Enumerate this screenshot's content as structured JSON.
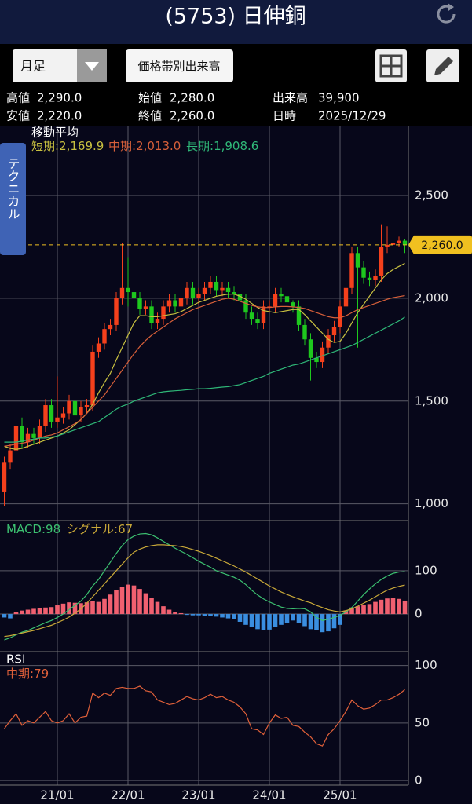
{
  "header": {
    "title": "(5753) 日伸銅"
  },
  "toolbar": {
    "period": "月足",
    "button": "価格帯別出来高"
  },
  "info": {
    "rows": [
      [
        {
          "label": "高値",
          "value": "2,290.0"
        },
        {
          "label": "始値",
          "value": "2,280.0"
        },
        {
          "label": "出来高",
          "value": "39,900"
        }
      ],
      [
        {
          "label": "安値",
          "value": "2,220.0"
        },
        {
          "label": "終値",
          "value": "2,260.0"
        },
        {
          "label": "日時",
          "value": "2025/12/29"
        }
      ]
    ]
  },
  "side_tab": "テクニカル",
  "chart_data": [
    {
      "type": "candlestick",
      "title": "移動平均",
      "legend_separator": ":",
      "grid": true,
      "up_color": "#f5401c",
      "down_color": "#1ec81e",
      "categories": [
        null,
        null,
        null,
        null,
        null,
        null,
        null,
        null,
        null,
        "21/01",
        null,
        null,
        null,
        null,
        null,
        null,
        null,
        null,
        null,
        null,
        null,
        "22/01",
        null,
        null,
        null,
        null,
        null,
        null,
        null,
        null,
        null,
        null,
        null,
        "23/01",
        null,
        null,
        null,
        null,
        null,
        null,
        null,
        null,
        null,
        null,
        null,
        "24/01",
        null,
        null,
        null,
        null,
        null,
        null,
        null,
        null,
        null,
        null,
        null,
        "25/01",
        null,
        null,
        null,
        null,
        null,
        null,
        null,
        null,
        null,
        null,
        null
      ],
      "open": [
        1060,
        1200,
        1260,
        1380,
        1300,
        1340,
        1320,
        1380,
        1480,
        1400,
        1420,
        1440,
        1500,
        1430,
        1470,
        1480,
        1740,
        1780,
        1850,
        1870,
        2000,
        2050,
        2030,
        2000,
        1950,
        1960,
        1880,
        1900,
        1960,
        1990,
        1960,
        2000,
        2050,
        2000,
        2020,
        2050,
        2080,
        2040,
        2050,
        2030,
        2020,
        1990,
        1930,
        1900,
        1880,
        1960,
        1960,
        2020,
        2010,
        1980,
        1960,
        1870,
        1800,
        1710,
        1690,
        1760,
        1820,
        1860,
        1960,
        2050,
        2220,
        2150,
        2100,
        2090,
        2110,
        2250,
        2260,
        2270,
        2280
      ],
      "high": [
        1230,
        1290,
        1410,
        1420,
        1370,
        1370,
        1410,
        1510,
        1510,
        1620,
        1470,
        1530,
        1530,
        1500,
        1510,
        1770,
        1810,
        1880,
        1900,
        2030,
        2270,
        2200,
        2060,
        2030,
        1990,
        1990,
        1930,
        1990,
        2020,
        2020,
        2060,
        2080,
        2080,
        2050,
        2080,
        2110,
        2110,
        2080,
        2080,
        2060,
        2050,
        2020,
        1960,
        1930,
        1990,
        1990,
        2050,
        2050,
        2040,
        1990,
        1990,
        1900,
        1830,
        1740,
        1790,
        1850,
        1890,
        1990,
        2080,
        2250,
        2250,
        2180,
        2130,
        2140,
        2360,
        2350,
        2330,
        2300,
        2290
      ],
      "low": [
        990,
        1170,
        1230,
        1270,
        1270,
        1290,
        1290,
        1350,
        1370,
        1370,
        1390,
        1410,
        1400,
        1400,
        1440,
        1450,
        1710,
        1750,
        1820,
        1840,
        1970,
        1960,
        1970,
        1920,
        1920,
        1850,
        1850,
        1870,
        1930,
        1930,
        1930,
        1970,
        1970,
        1970,
        1990,
        2020,
        2010,
        2010,
        2000,
        1990,
        1960,
        1900,
        1870,
        1850,
        1850,
        1930,
        1930,
        1980,
        1950,
        1930,
        1840,
        1770,
        1600,
        1660,
        1660,
        1730,
        1790,
        1830,
        1930,
        2020,
        1760,
        2070,
        2060,
        2060,
        2080,
        2220,
        2240,
        2250,
        2220
      ],
      "close": [
        1200,
        1260,
        1380,
        1300,
        1340,
        1320,
        1380,
        1480,
        1400,
        1420,
        1440,
        1500,
        1430,
        1470,
        1480,
        1740,
        1780,
        1850,
        1870,
        2000,
        2050,
        2030,
        2000,
        1950,
        1960,
        1880,
        1900,
        1960,
        1990,
        1960,
        2000,
        2050,
        2000,
        2020,
        2050,
        2080,
        2040,
        2050,
        2030,
        2020,
        1990,
        1930,
        1900,
        1880,
        1960,
        1960,
        2020,
        2010,
        1980,
        1960,
        1870,
        1800,
        1710,
        1690,
        1760,
        1820,
        1860,
        1960,
        2050,
        2220,
        2150,
        2100,
        2090,
        2110,
        2250,
        2260,
        2270,
        2280,
        2260
      ],
      "series": [
        {
          "name": "短期",
          "color": "#c8c040",
          "last_label": "2,169.9",
          "values": [
            1280,
            1270,
            1265,
            1270,
            1280,
            1290,
            1300,
            1310,
            1320,
            1330,
            1345,
            1360,
            1385,
            1410,
            1440,
            1485,
            1540,
            1590,
            1635,
            1700,
            1760,
            1820,
            1880,
            1915,
            1915,
            1910,
            1910,
            1915,
            1920,
            1925,
            1935,
            1950,
            1965,
            1980,
            1990,
            2000,
            2010,
            2015,
            2020,
            2020,
            2010,
            1995,
            1975,
            1955,
            1940,
            1935,
            1930,
            1935,
            1940,
            1945,
            1945,
            1920,
            1890,
            1860,
            1830,
            1800,
            1785,
            1790,
            1830,
            1880,
            1930,
            1970,
            2010,
            2050,
            2090,
            2120,
            2140,
            2155,
            2169.9
          ]
        },
        {
          "name": "中期",
          "color": "#d8603a",
          "last_label": "2,013.0",
          "values": [
            1280,
            1285,
            1290,
            1295,
            1300,
            1310,
            1320,
            1330,
            1335,
            1345,
            1360,
            1375,
            1390,
            1410,
            1440,
            1470,
            1500,
            1530,
            1570,
            1610,
            1650,
            1690,
            1730,
            1765,
            1795,
            1820,
            1840,
            1860,
            1880,
            1900,
            1915,
            1930,
            1945,
            1955,
            1965,
            1975,
            1985,
            1995,
            2000,
            1995,
            1985,
            1975,
            1965,
            1958,
            1955,
            1955,
            1958,
            1960,
            1960,
            1958,
            1955,
            1950,
            1940,
            1930,
            1920,
            1910,
            1905,
            1905,
            1915,
            1930,
            1945,
            1955,
            1965,
            1975,
            1985,
            1995,
            2003,
            2008,
            2013.0
          ]
        },
        {
          "name": "長期",
          "color": "#2fb878",
          "last_label": "1,908.6",
          "values": [
            1300,
            1300,
            1300,
            1305,
            1310,
            1315,
            1320,
            1320,
            1325,
            1330,
            1340,
            1350,
            1360,
            1370,
            1380,
            1390,
            1400,
            1420,
            1440,
            1460,
            1475,
            1485,
            1500,
            1510,
            1520,
            1530,
            1540,
            1545,
            1548,
            1550,
            1552,
            1555,
            1557,
            1560,
            1560,
            1562,
            1565,
            1568,
            1570,
            1575,
            1580,
            1590,
            1600,
            1610,
            1620,
            1635,
            1645,
            1655,
            1665,
            1675,
            1680,
            1690,
            1700,
            1710,
            1720,
            1730,
            1740,
            1750,
            1760,
            1770,
            1785,
            1800,
            1815,
            1830,
            1845,
            1860,
            1875,
            1890,
            1908.6
          ]
        }
      ],
      "price_line": {
        "value": 2260,
        "label": "2,260.0",
        "color": "#f0c020"
      },
      "ylim": [
        930,
        2840
      ],
      "yticks": [
        {
          "value": 1000,
          "label": "1,000"
        },
        {
          "value": 1500,
          "label": "1,500"
        },
        {
          "value": 2000,
          "label": "2,000"
        },
        {
          "value": 2500,
          "label": "2,500"
        }
      ]
    },
    {
      "type": "macd",
      "legend_separator": ":",
      "grid": true,
      "histogram": {
        "up_color": "#f06070",
        "down_color": "#3a8ee0",
        "values": [
          -8,
          -10,
          5,
          8,
          10,
          12,
          14,
          15,
          16,
          20,
          24,
          27,
          26,
          25,
          27,
          30,
          28,
          35,
          45,
          55,
          62,
          68,
          66,
          58,
          48,
          38,
          28,
          18,
          10,
          4,
          2,
          -2,
          -3,
          -3,
          -4,
          -5,
          -6,
          -8,
          -10,
          -12,
          -18,
          -25,
          -30,
          -35,
          -38,
          -36,
          -30,
          -25,
          -20,
          -15,
          -20,
          -28,
          -35,
          -38,
          -42,
          -40,
          -33,
          -25,
          8,
          15,
          18,
          20,
          23,
          28,
          33,
          36,
          37,
          35,
          31
        ]
      },
      "series": [
        {
          "name": "MACD",
          "color": "#3cc070",
          "last_label": "98",
          "values": [
            -60,
            -55,
            -48,
            -42,
            -38,
            -32,
            -26,
            -20,
            -15,
            -8,
            0,
            10,
            20,
            30,
            45,
            65,
            80,
            100,
            120,
            140,
            158,
            172,
            180,
            185,
            186,
            183,
            176,
            168,
            160,
            152,
            145,
            138,
            130,
            122,
            115,
            108,
            100,
            95,
            90,
            85,
            78,
            68,
            55,
            44,
            35,
            28,
            22,
            16,
            13,
            12,
            13,
            12,
            5,
            -8,
            -15,
            -12,
            -8,
            -3,
            5,
            15,
            30,
            45,
            58,
            70,
            80,
            88,
            94,
            97,
            98
          ]
        },
        {
          "name": "シグナル",
          "color": "#c8a838",
          "last_label": "67",
          "values": [
            -52,
            -50,
            -47,
            -44,
            -41,
            -38,
            -34,
            -30,
            -26,
            -20,
            -14,
            -7,
            2,
            12,
            25,
            40,
            55,
            70,
            85,
            100,
            115,
            130,
            143,
            150,
            155,
            158,
            160,
            160,
            159,
            158,
            156,
            153,
            149,
            145,
            140,
            135,
            129,
            123,
            117,
            111,
            104,
            97,
            89,
            81,
            73,
            65,
            58,
            51,
            45,
            40,
            35,
            30,
            26,
            20,
            15,
            10,
            7,
            5,
            8,
            12,
            18,
            25,
            32,
            40,
            48,
            55,
            60,
            64,
            67
          ]
        }
      ],
      "ylim": [
        -87,
        216
      ],
      "yticks": [
        0,
        100
      ]
    },
    {
      "type": "line",
      "title": "RSI",
      "legend_separator": ":",
      "grid": true,
      "series": [
        {
          "name": "中期",
          "color": "#e0603a",
          "last_label": "79",
          "values": [
            45,
            52,
            58,
            48,
            52,
            50,
            55,
            60,
            52,
            50,
            52,
            58,
            50,
            55,
            56,
            76,
            72,
            76,
            74,
            80,
            81,
            80,
            80,
            82,
            78,
            77,
            70,
            68,
            66,
            67,
            70,
            73,
            71,
            70,
            72,
            75,
            72,
            73,
            70,
            68,
            64,
            58,
            45,
            44,
            40,
            50,
            57,
            54,
            55,
            48,
            47,
            42,
            38,
            32,
            30,
            40,
            45,
            52,
            60,
            70,
            65,
            62,
            63,
            66,
            70,
            70,
            72,
            75,
            79
          ]
        }
      ],
      "ylim": [
        -4,
        112
      ],
      "yticks": [
        0,
        50,
        100
      ]
    }
  ]
}
